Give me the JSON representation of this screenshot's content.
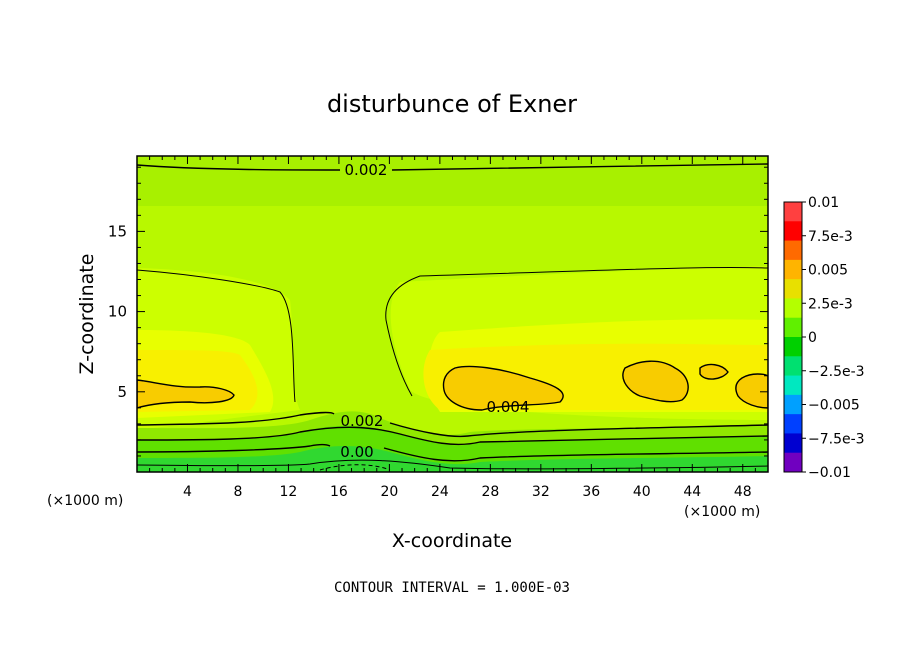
{
  "chart_data": {
    "type": "contour",
    "title": "disturbunce of Exner",
    "xlabel": "X-coordinate",
    "ylabel": "Z-coordinate",
    "x_unit_left": "(×1000 m)",
    "x_unit_right": "(×1000 m)",
    "xlim": [
      0,
      50
    ],
    "ylim": [
      0,
      19.7
    ],
    "x_ticks": [
      "4",
      "8",
      "12",
      "16",
      "20",
      "24",
      "28",
      "32",
      "36",
      "40",
      "44",
      "48"
    ],
    "y_ticks": [
      "5",
      "10",
      "15"
    ],
    "contour_labels": [
      "0.002",
      "0.002",
      "0.00",
      "0.004"
    ],
    "footer": "CONTOUR INTERVAL = 1.000E-03",
    "colorbar": {
      "labels": [
        "0.01",
        "7.5e-3",
        "0.005",
        "2.5e-3",
        "0",
        "−2.5e-3",
        "−0.005",
        "−7.5e-3",
        "−0.01"
      ],
      "colors": [
        "#ff4040",
        "#ff0000",
        "#ff6a00",
        "#ffb400",
        "#e8e000",
        "#b4ff00",
        "#60f000",
        "#00d000",
        "#00e070",
        "#00e8c0",
        "#00a0ff",
        "#0040ff",
        "#0000d0",
        "#7000c0"
      ]
    },
    "field_colors": {
      "top_band": "#a8f000",
      "background": "#b8f800",
      "inner": "#ccff00",
      "mid": "#e8ff00",
      "high": "#f8f000",
      "peak": "#f8cc00",
      "low1": "#90e800",
      "low2": "#60e000",
      "low3": "#30d830"
    }
  }
}
